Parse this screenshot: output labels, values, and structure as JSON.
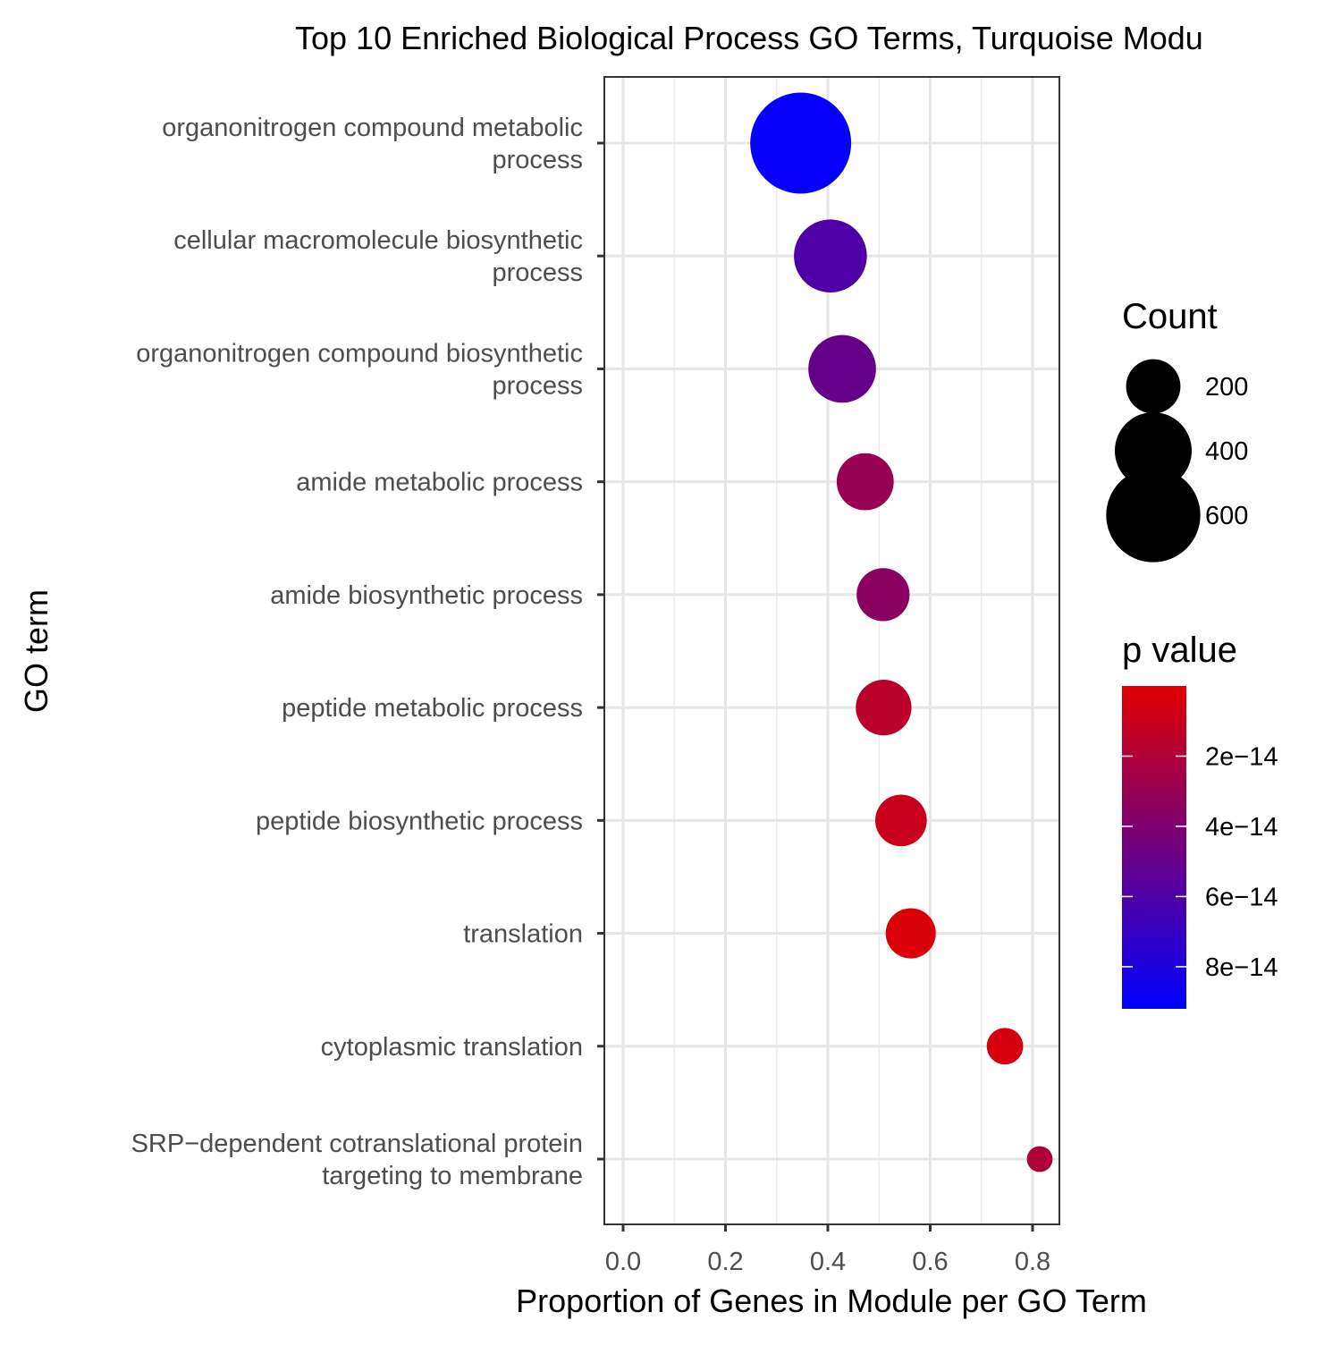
{
  "chart_data": {
    "type": "scatter",
    "title": "Top 10 Enriched Biological Process GO Terms, Turquoise Modu",
    "xlabel": "Proportion of Genes in Module per GO Term",
    "ylabel": "GO term",
    "xlim": [
      -0.03,
      0.85
    ],
    "x_ticks": [
      0.0,
      0.2,
      0.4,
      0.6,
      0.8
    ],
    "x_tick_labels": [
      "0.0",
      "0.2",
      "0.4",
      "0.6",
      "0.8"
    ],
    "grid": true,
    "points": [
      {
        "term": [
          "organonitrogen compound metabolic",
          "process"
        ],
        "x": 0.347,
        "count": 690,
        "p": 9e-14
      },
      {
        "term": [
          "cellular macromolecule biosynthetic",
          "process"
        ],
        "x": 0.405,
        "count": 360,
        "p": 6e-14
      },
      {
        "term": [
          "organonitrogen compound biosynthetic",
          "process"
        ],
        "x": 0.428,
        "count": 310,
        "p": 5e-14
      },
      {
        "term": [
          "amide metabolic process"
        ],
        "x": 0.473,
        "count": 220,
        "p": 3e-14
      },
      {
        "term": [
          "amide biosynthetic process"
        ],
        "x": 0.508,
        "count": 190,
        "p": 3.5e-14
      },
      {
        "term": [
          "peptide metabolic process"
        ],
        "x": 0.509,
        "count": 210,
        "p": 1.5e-14
      },
      {
        "term": [
          "peptide biosynthetic process"
        ],
        "x": 0.543,
        "count": 180,
        "p": 1e-14
      },
      {
        "term": [
          "translation"
        ],
        "x": 0.562,
        "count": 170,
        "p": 3e-15
      },
      {
        "term": [
          "cytoplasmic translation"
        ],
        "x": 0.746,
        "count": 90,
        "p": 5e-15
      },
      {
        "term": [
          "SRP−dependent cotranslational protein",
          "targeting to membrane"
        ],
        "x": 0.814,
        "count": 45,
        "p": 2e-14
      }
    ],
    "legend_size": {
      "title": "Count",
      "entries": [
        {
          "label": "200",
          "count": 200
        },
        {
          "label": "400",
          "count": 400
        },
        {
          "label": "600",
          "count": 600
        }
      ]
    },
    "legend_color": {
      "title": "p value",
      "range": [
        0.0,
        9.2e-14
      ],
      "low_color": "#e00000",
      "high_color": "#0000ff",
      "ticks": [
        {
          "label": "2e−14",
          "value": 2e-14
        },
        {
          "label": "4e−14",
          "value": 4e-14
        },
        {
          "label": "6e−14",
          "value": 6e-14
        },
        {
          "label": "8e−14",
          "value": 8e-14
        }
      ]
    }
  }
}
